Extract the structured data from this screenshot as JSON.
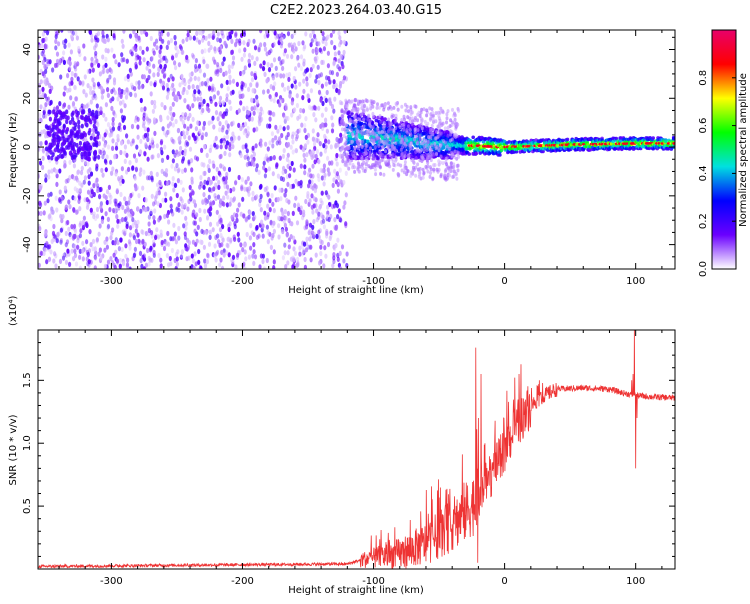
{
  "title": "C2E2.2023.264.03.40.G15",
  "chart_data": [
    {
      "type": "heatmap",
      "xlabel": "Height of straight line (km)",
      "ylabel": "Frequency (Hz)",
      "xlim": [
        -356,
        130
      ],
      "ylim": [
        -50,
        48
      ],
      "xticks": [
        -300,
        -200,
        -100,
        0,
        100
      ],
      "yticks": [
        -40,
        -20,
        0,
        20,
        40
      ],
      "noise_region_x": [
        -356,
        -120
      ],
      "signal_region_x": [
        -120,
        130
      ],
      "signal_center_hz_points": [
        [
          -120,
          5
        ],
        [
          -80,
          3
        ],
        [
          -50,
          1
        ],
        [
          -20,
          0.5
        ],
        [
          0,
          0
        ],
        [
          50,
          1
        ],
        [
          100,
          1.5
        ],
        [
          130,
          1.5
        ]
      ],
      "colorbar": {
        "label": "Normalized spectral amplitude",
        "range": [
          0,
          1
        ],
        "ticks": [
          "0.0",
          "0.2",
          "0.4",
          "0.6",
          "0.8"
        ],
        "colormap": [
          "#ffffff",
          "#6a00ff",
          "#0000ff",
          "#00e0e0",
          "#00ff00",
          "#ffff00",
          "#ff0000",
          "#e8006a"
        ]
      }
    },
    {
      "type": "line",
      "xlabel": "Height of straight line (km)",
      "ylabel": "SNR (10 * v/v)",
      "y_multiplier": "(x10⁴)",
      "xlim": [
        -356,
        130
      ],
      "ylim": [
        0,
        1.9
      ],
      "xticks": [
        -300,
        -200,
        -100,
        0,
        100
      ],
      "yticks": [
        "0.5",
        "1.0",
        "1.5"
      ],
      "color": "#ee3333",
      "profile": {
        "x": [
          -356,
          -250,
          -120,
          -110,
          -80,
          -60,
          -40,
          -20,
          -10,
          0,
          10,
          20,
          30,
          40,
          60,
          80,
          90,
          100,
          110,
          130
        ],
        "y": [
          0.02,
          0.03,
          0.04,
          0.07,
          0.12,
          0.2,
          0.35,
          0.55,
          0.75,
          0.95,
          1.15,
          1.3,
          1.38,
          1.43,
          1.44,
          1.43,
          1.4,
          1.38,
          1.37,
          1.36
        ]
      },
      "spikes": [
        [
          -22,
          1.76
        ],
        [
          -20,
          1.2
        ],
        [
          -18,
          1.55
        ],
        [
          -15,
          1.0
        ],
        [
          -20.5,
          0.05
        ],
        [
          99,
          1.93
        ],
        [
          100,
          0.8
        ],
        [
          98,
          1.55
        ],
        [
          101,
          1.2
        ],
        [
          97,
          1.5
        ]
      ]
    }
  ]
}
